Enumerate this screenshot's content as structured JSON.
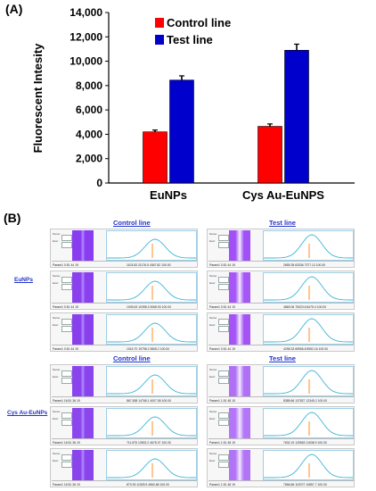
{
  "panel_a_label": "(A)",
  "panel_b_label": "(B)",
  "chart_data": {
    "type": "bar",
    "title": "",
    "xlabel": "",
    "ylabel": "Fluorescent Intesity",
    "ylim": [
      0,
      14000
    ],
    "yticks": [
      0,
      2000,
      4000,
      6000,
      8000,
      10000,
      12000,
      14000
    ],
    "ytick_labels": [
      "0",
      "2,000",
      "4,000",
      "6,000",
      "8,000",
      "10,000",
      "12,000",
      "14,000"
    ],
    "categories": [
      "EuNPs",
      "Cys Au-EuNPS"
    ],
    "series": [
      {
        "name": "Control line",
        "color": "#ff0000",
        "values": [
          4200,
          4650
        ],
        "errors": [
          150,
          200
        ]
      },
      {
        "name": "Test line",
        "color": "#0000cc",
        "values": [
          8450,
          10900
        ],
        "errors": [
          350,
          500
        ]
      }
    ],
    "legend_position": "top-left",
    "grid": false
  },
  "panel_b": {
    "control_title": "Control line",
    "test_title": "Test line",
    "row_labels": [
      "EuNPs",
      "Cys Au-EuNPs"
    ],
    "field_labels": [
      "Name",
      "Exel"
    ],
    "table_headers": [
      "Start",
      "Stop",
      "Pos",
      "No",
      "Ctr",
      "RefRange",
      "Height",
      "Area",
      "Abs",
      "Ratio"
    ],
    "readers": [
      {
        "group": "control",
        "row": 0,
        "param": "Param1",
        "vals": "0   81   44   19",
        "nums": "1103.83   21176.5   4367.82   100.00",
        "strip": "#8a3cf0"
      },
      {
        "group": "control",
        "row": 0,
        "param": "Param1",
        "vals": "0   81   44   19",
        "nums": "1005.63   10398.3   3068.93   100.00",
        "strip": "#8a40ee"
      },
      {
        "group": "control",
        "row": 0,
        "param": "Param1",
        "vals": "0   81   44   19",
        "nums": "1015.70   19798.2   3808.2   100.00",
        "strip": "#8840ec"
      },
      {
        "group": "test",
        "row": 0,
        "param": "Param1",
        "vals": "0   81   44   19",
        "nums": "2655.35   63336   7377.12   100.00",
        "strip": "#a050f4"
      },
      {
        "group": "test",
        "row": 0,
        "param": "Param1",
        "vals": "0   81   44   19",
        "nums": "4869.06   75023.6   8475.4   100.00",
        "strip": "#a656f6"
      },
      {
        "group": "test",
        "row": 0,
        "param": "Param1",
        "vals": "0   81   44   19",
        "nums": "4298.33   69556.8   8952.16   100.00",
        "strip": "#a454f4"
      },
      {
        "group": "control",
        "row": 1,
        "param": "Param1",
        "vals": "16   81   36   19",
        "nums": "867.838   14768.1   4007.55   100.00",
        "strip": "#8a44ee"
      },
      {
        "group": "control",
        "row": 1,
        "param": "Param1",
        "vals": "16   81   36   19",
        "nums": "711.875   13902.2   4678.37   100.00",
        "strip": "#8c46ee"
      },
      {
        "group": "control",
        "row": 1,
        "param": "Param1",
        "vals": "16   81   36   19",
        "nums": "873.93   11525.9   4560.68   100.00",
        "strip": "#8a44ec"
      },
      {
        "group": "test",
        "row": 1,
        "param": "Param1",
        "vals": "1   81   48   19",
        "nums": "8385.66   137827   12345.2   100.00",
        "strip": "#b070f6"
      },
      {
        "group": "test",
        "row": 1,
        "param": "Param1",
        "vals": "1   81   48   19",
        "nums": "7632.19   125553   11538.9   100.00",
        "strip": "#b476f8"
      },
      {
        "group": "test",
        "row": 1,
        "param": "Param1",
        "vals": "1   81   48   19",
        "nums": "7656.86   115707   10857.7   100.00",
        "strip": "#b274f6"
      }
    ]
  }
}
